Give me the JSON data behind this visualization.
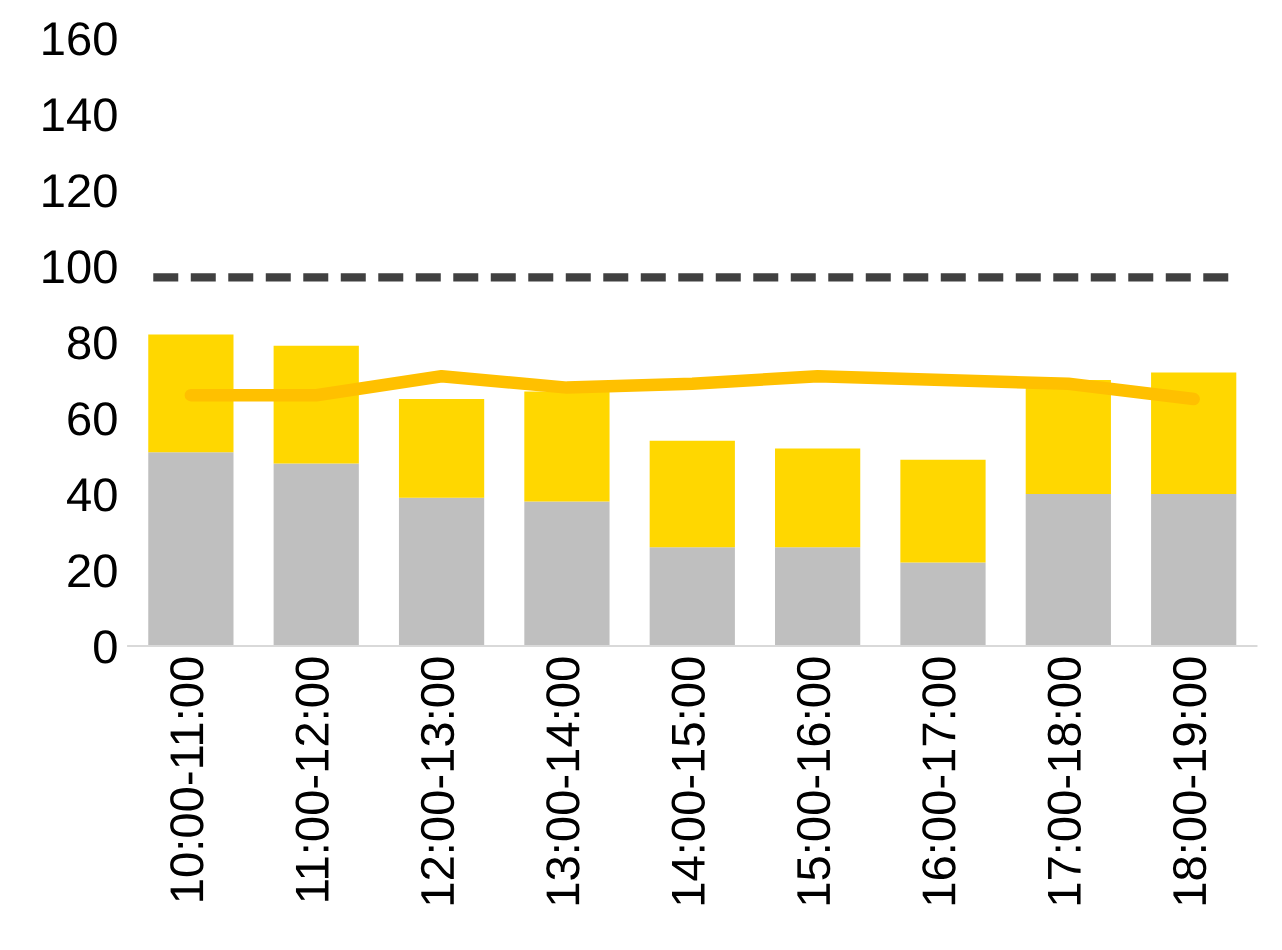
{
  "chart_data": {
    "type": "bar",
    "stacked": true,
    "categories": [
      "10:00-11:00",
      "11:00-12:00",
      "12:00-13:00",
      "13:00-14:00",
      "14:00-15:00",
      "15:00-16:00",
      "16:00-17:00",
      "17:00-18:00",
      "18:00-19:00"
    ],
    "series": [
      {
        "color": "#bfbfbf",
        "values": [
          51,
          48,
          39,
          38,
          26,
          26,
          22,
          40,
          40
        ]
      },
      {
        "color": "#ffd700",
        "values": [
          31,
          31,
          26,
          29,
          28,
          26,
          27,
          30,
          32
        ]
      },
      {
        "type": "line",
        "color": "#ffc000",
        "values": [
          66,
          66,
          71,
          68,
          69,
          71,
          70,
          69,
          65
        ]
      }
    ],
    "ref_lines": [
      {
        "axis": "y",
        "value": 97,
        "color": "#404040",
        "line_style": "dashed"
      }
    ],
    "ylim": [
      0,
      160
    ],
    "yticks": [
      0,
      20,
      40,
      60,
      80,
      100,
      120,
      140,
      160
    ],
    "grid": false,
    "legend": false,
    "marker": "none"
  }
}
